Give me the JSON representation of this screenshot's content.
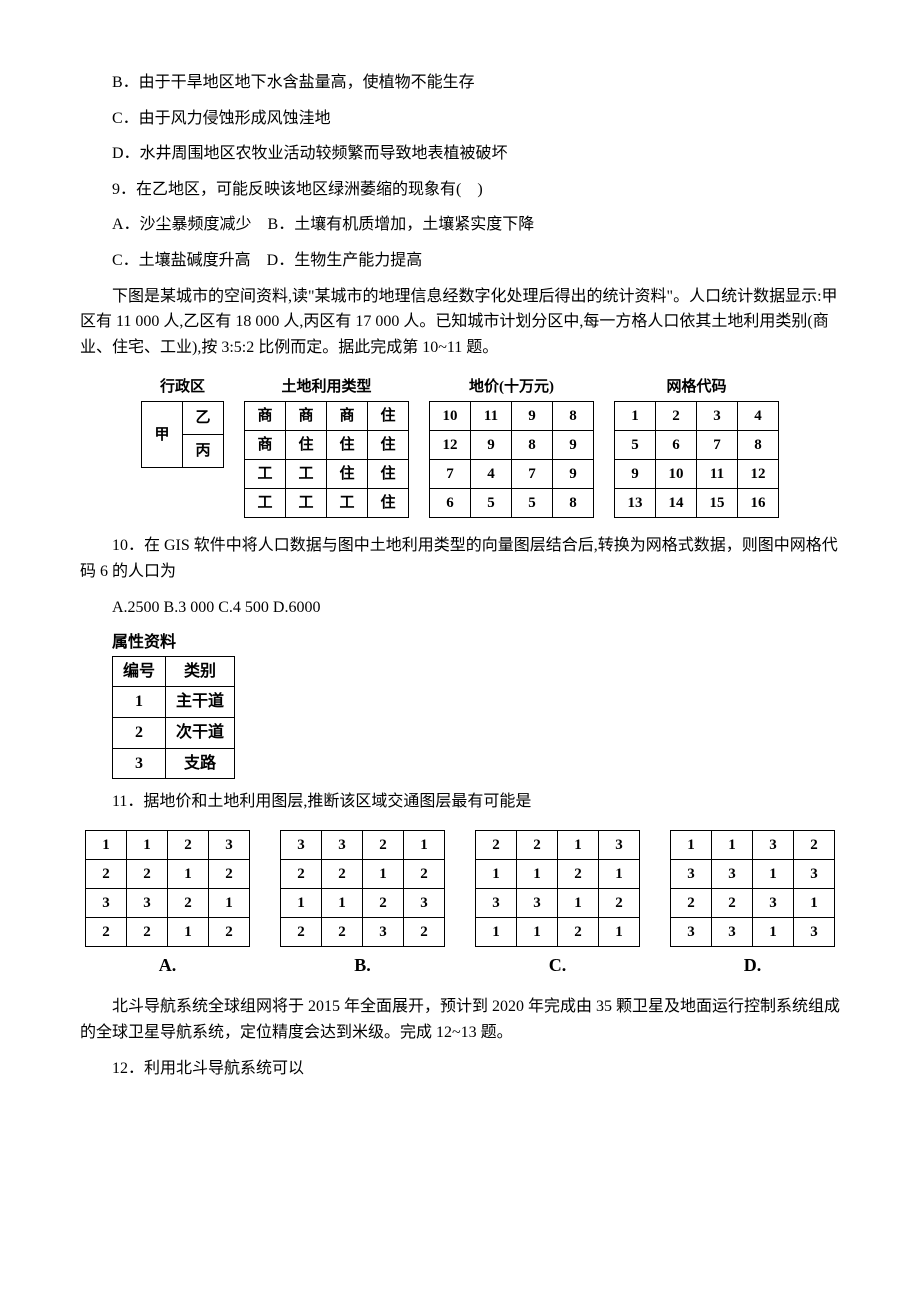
{
  "lines": {
    "optB": "B．由于干旱地区地下水含盐量高，使植物不能生存",
    "optC": "C．由于风力侵蚀形成风蚀洼地",
    "optD": "D．水井周围地区农牧业活动较频繁而导致地表植被破坏",
    "q9": "9．在乙地区，可能反映该地区绿洲萎缩的现象有(　)",
    "q9a": "A．沙尘暴频度减少　B．土壤有机质增加，土壤紧实度下降",
    "q9c": "C．土壤盐碱度升高　D．生物生产能力提高",
    "intro1": "下图是某城市的空间资料,读\"某城市的地理信息经数字化处理后得出的统计资料\"。人口统计数据显示:甲区有 11 000 人,乙区有 18 000 人,丙区有 17 000 人。已知城市计划分区中,每一方格人口依其土地利用类别(商业、住宅、工业),按 3:5:2 比例而定。据此完成第 10~11 题。",
    "q10": "10．在 GIS 软件中将人口数据与图中土地利用类型的向量图层结合后,转换为网格式数据，则图中网格代码 6 的人口为",
    "q10opts": "A.2500 B.3 000 C.4 500 D.6000",
    "q11": "11．据地价和土地利用图层,推断该区域交通图层最有可能是",
    "intro2": "北斗导航系统全球组网将于 2015 年全面展开，预计到 2020 年完成由 35 颗卫星及地面运行控制系统组成的全球卫星导航系统，定位精度会达到米级。完成 12~13 题。",
    "q12": "12．利用北斗导航系统可以"
  },
  "headers": {
    "admin": "行政区",
    "land": "土地利用类型",
    "price": "地价(十万元)",
    "grid": "网格代码",
    "attr": "属性资料"
  },
  "admin": {
    "jia": "甲",
    "yi": "乙",
    "bing": "丙"
  },
  "land": {
    "rows": [
      [
        "商",
        "商",
        "商",
        "住"
      ],
      [
        "商",
        "住",
        "住",
        "住"
      ],
      [
        "工",
        "工",
        "住",
        "住"
      ],
      [
        "工",
        "工",
        "工",
        "住"
      ]
    ]
  },
  "price": {
    "rows": [
      [
        "10",
        "11",
        "9",
        "8"
      ],
      [
        "12",
        "9",
        "8",
        "9"
      ],
      [
        "7",
        "4",
        "7",
        "9"
      ],
      [
        "6",
        "5",
        "5",
        "8"
      ]
    ]
  },
  "gridcode": {
    "rows": [
      [
        "1",
        "2",
        "3",
        "4"
      ],
      [
        "5",
        "6",
        "7",
        "8"
      ],
      [
        "9",
        "10",
        "11",
        "12"
      ],
      [
        "13",
        "14",
        "15",
        "16"
      ]
    ]
  },
  "attr": {
    "h1": "编号",
    "h2": "类别",
    "rows": [
      [
        "1",
        "主干道"
      ],
      [
        "2",
        "次干道"
      ],
      [
        "3",
        "支路"
      ]
    ]
  },
  "options": {
    "A": {
      "label": "A.",
      "rows": [
        [
          "1",
          "1",
          "2",
          "3"
        ],
        [
          "2",
          "2",
          "1",
          "2"
        ],
        [
          "3",
          "3",
          "2",
          "1"
        ],
        [
          "2",
          "2",
          "1",
          "2"
        ]
      ]
    },
    "B": {
      "label": "B.",
      "rows": [
        [
          "3",
          "3",
          "2",
          "1"
        ],
        [
          "2",
          "2",
          "1",
          "2"
        ],
        [
          "1",
          "1",
          "2",
          "3"
        ],
        [
          "2",
          "2",
          "3",
          "2"
        ]
      ]
    },
    "C": {
      "label": "C.",
      "rows": [
        [
          "2",
          "2",
          "1",
          "3"
        ],
        [
          "1",
          "1",
          "2",
          "1"
        ],
        [
          "3",
          "3",
          "1",
          "2"
        ],
        [
          "1",
          "1",
          "2",
          "1"
        ]
      ]
    },
    "D": {
      "label": "D.",
      "rows": [
        [
          "1",
          "1",
          "3",
          "2"
        ],
        [
          "3",
          "3",
          "1",
          "3"
        ],
        [
          "2",
          "2",
          "3",
          "1"
        ],
        [
          "3",
          "3",
          "1",
          "3"
        ]
      ]
    }
  }
}
